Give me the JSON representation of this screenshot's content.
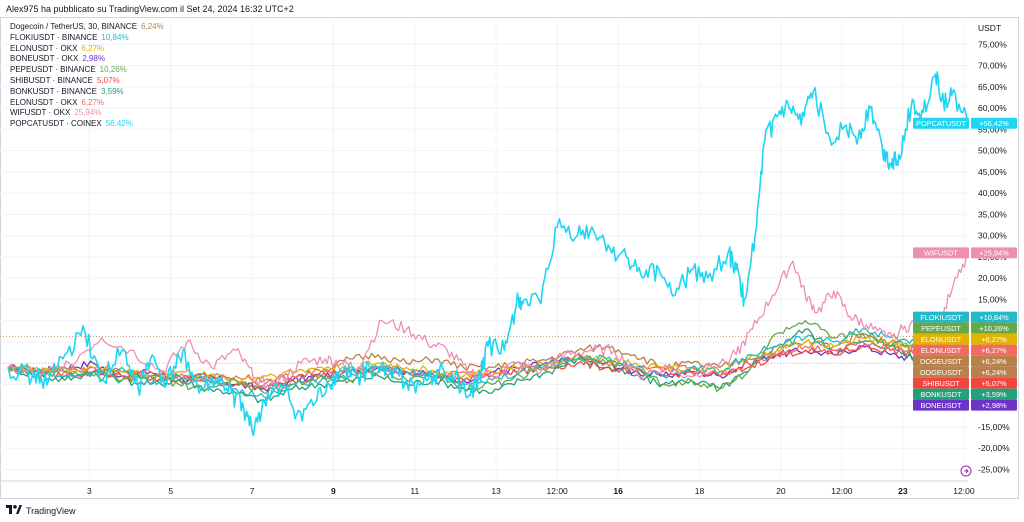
{
  "header": {
    "published_by": "Alex975 ha pubblicato su TradingView.com il Set 24, 2024 16:32 UTC+2"
  },
  "footer": {
    "brand": "TradingView"
  },
  "chart_data": {
    "type": "line",
    "title": "Dogecoin / TetherUS, 30, BINANCE",
    "currency": "USDT",
    "y_unit": "%",
    "ylim": [
      -27,
      80
    ],
    "y_ticks": [
      75,
      70,
      65,
      60,
      55,
      50,
      45,
      40,
      35,
      30,
      25,
      20,
      15,
      10,
      5,
      0,
      -5,
      -10,
      -15,
      -20,
      -25
    ],
    "y_tick_labels": [
      "75,00%",
      "70,00%",
      "65,00%",
      "60,00%",
      "55,00%",
      "50,00%",
      "45,00%",
      "40,00%",
      "35,00%",
      "30,00%",
      "25,00%",
      "20,00%",
      "15,00%",
      "10,00%",
      "5,00%",
      "0,00%",
      "-5,00%",
      "-10,00%",
      "-15,00%",
      "-20,00%",
      "-25,00%"
    ],
    "xlim": [
      0,
      23.6
    ],
    "x_ticks": [
      {
        "x": 2.0,
        "label": "3",
        "bold": false
      },
      {
        "x": 4.0,
        "label": "5",
        "bold": false
      },
      {
        "x": 6.0,
        "label": "7",
        "bold": false
      },
      {
        "x": 8.0,
        "label": "9",
        "bold": true
      },
      {
        "x": 10.0,
        "label": "11",
        "bold": false
      },
      {
        "x": 12.0,
        "label": "13",
        "bold": false
      },
      {
        "x": 13.5,
        "label": "12:00",
        "bold": false
      },
      {
        "x": 15.0,
        "label": "16",
        "bold": true
      },
      {
        "x": 17.0,
        "label": "18",
        "bold": false
      },
      {
        "x": 19.0,
        "label": "20",
        "bold": false
      },
      {
        "x": 20.5,
        "label": "12:00",
        "bold": false
      },
      {
        "x": 22.0,
        "label": "23",
        "bold": true
      },
      {
        "x": 23.5,
        "label": "12:00",
        "bold": false
      }
    ],
    "main": {
      "name": "Dogecoin / TetherUS, 30, BINANCE",
      "value": "6,24%",
      "label": "DOGEUSDT",
      "badge": "+6,24%",
      "color": "#b9804c"
    },
    "legend": [
      {
        "symbol": "FLOKIUSDT · BINANCE",
        "value": "10,84%",
        "color": "#26b8c6"
      },
      {
        "symbol": "ELONUSDT · OKX",
        "value": "6,27%",
        "color": "#e0b400"
      },
      {
        "symbol": "BONEUSDT · OKX",
        "value": "2,98%",
        "color": "#6b35c8"
      },
      {
        "symbol": "PEPEUSDT · BINANCE",
        "value": "10,26%",
        "color": "#65a847"
      },
      {
        "symbol": "SHIBUSDT · BINANCE",
        "value": "5,07%",
        "color": "#f0463f"
      },
      {
        "symbol": "BONKUSDT · BINANCE",
        "value": "3,59%",
        "color": "#22a07a"
      },
      {
        "symbol": "ELONUSDT · OKX",
        "value": "6,27%",
        "color": "#f26b62"
      },
      {
        "symbol": "WIFUSDT · OKX",
        "value": "25,94%",
        "color": "#ef8fb0"
      },
      {
        "symbol": "POPCATUSDT · COINEX",
        "value": "56,42%",
        "color": "#1fd6f2"
      }
    ],
    "series": [
      {
        "name": "POPCATUSDT",
        "badge": "+56,42%",
        "color": "#1fd6f2",
        "last": 56.42,
        "x": [
          0,
          0.6,
          1.0,
          1.4,
          1.9,
          2.3,
          2.8,
          3.2,
          3.5,
          3.9,
          4.3,
          4.7,
          5.1,
          5.5,
          5.8,
          6.0,
          6.3,
          6.7,
          7.1,
          7.5,
          7.9,
          8.2,
          8.6,
          9.0,
          9.4,
          9.8,
          10.2,
          10.6,
          11.0,
          11.3,
          11.6,
          11.8,
          12.2,
          12.5,
          12.7,
          13.1,
          13.5,
          14.0,
          14.4,
          14.8,
          15.2,
          15.6,
          16.0,
          16.4,
          16.8,
          17.2,
          17.7,
          17.9,
          18.1,
          18.4,
          18.6,
          18.9,
          19.2,
          19.5,
          19.8,
          20.2,
          20.6,
          20.9,
          21.2,
          21.5,
          21.7,
          21.9,
          22.2,
          22.5,
          22.8,
          23.0,
          23.2,
          23.6
        ],
        "y": [
          -1,
          -3,
          -4,
          2,
          7,
          -4,
          3,
          -6,
          1,
          -5,
          3,
          -7,
          -4,
          -7,
          -11,
          -16,
          -9,
          -5,
          -12,
          -10,
          -5,
          -2,
          -3,
          -1,
          -2,
          -4,
          -5,
          -2,
          -3,
          -8,
          -3,
          4,
          3,
          14,
          15,
          14,
          32,
          30,
          31,
          27,
          25,
          20,
          22,
          16,
          22,
          20,
          26,
          22,
          15,
          32,
          52,
          58,
          60,
          56,
          64,
          53,
          56,
          53,
          60,
          50,
          47,
          49,
          60,
          59,
          68,
          61,
          63,
          56.42
        ]
      },
      {
        "name": "WIFUSDT",
        "badge": "+25,94%",
        "color": "#ef8fb0",
        "last": 25.94,
        "x": [
          0,
          0.8,
          1.5,
          2.3,
          3.0,
          3.8,
          4.4,
          5.0,
          5.6,
          6.1,
          6.6,
          7.2,
          7.8,
          8.2,
          8.6,
          9.2,
          9.8,
          10.3,
          10.8,
          11.3,
          11.9,
          12.5,
          13.1,
          13.7,
          14.3,
          14.9,
          15.5,
          16.1,
          16.7,
          17.3,
          17.9,
          18.3,
          18.8,
          19.3,
          19.6,
          19.9,
          20.3,
          20.7,
          21.1,
          21.6,
          22.0,
          22.4,
          22.8,
          23.2,
          23.6
        ],
        "y": [
          -1,
          -3,
          0,
          6,
          3,
          -2,
          5,
          -1,
          3,
          -4,
          -5,
          0,
          1,
          0,
          -1,
          10,
          8,
          5,
          3,
          -2,
          -3,
          0,
          -2,
          2,
          3,
          3,
          -3,
          -1,
          -3,
          -1,
          2,
          8,
          16,
          24,
          16,
          12,
          17,
          11,
          9,
          6,
          8,
          10,
          7,
          17,
          25.94
        ]
      },
      {
        "name": "FLOKIUSDT",
        "badge": "+10,84%",
        "color": "#26b8c6",
        "last": 10.84,
        "x": [
          0,
          0.7,
          1.4,
          2.1,
          2.8,
          3.5,
          4.2,
          4.9,
          5.6,
          6.3,
          7.0,
          7.7,
          8.4,
          9.1,
          9.8,
          10.5,
          11.2,
          11.9,
          12.6,
          13.3,
          14.0,
          14.7,
          15.4,
          16.1,
          16.8,
          17.5,
          18.2,
          18.9,
          19.6,
          20.3,
          21.0,
          21.7,
          22.3,
          22.9,
          23.6
        ],
        "y": [
          -1,
          -2,
          -3,
          -2,
          -1,
          -5,
          -3,
          -4,
          -6,
          -8,
          -5,
          -4,
          -3,
          -1,
          -2,
          -3,
          -5,
          -4,
          -2,
          0,
          1,
          1,
          -1,
          -3,
          -1,
          -2,
          2,
          4,
          6,
          5,
          8,
          6,
          5,
          9,
          10.84
        ]
      },
      {
        "name": "PEPEUSDT",
        "badge": "+10,26%",
        "color": "#65a847",
        "last": 10.26,
        "x": [
          0,
          0.7,
          1.4,
          2.1,
          2.8,
          3.5,
          4.2,
          4.9,
          5.6,
          6.3,
          7.0,
          7.7,
          8.4,
          9.1,
          9.8,
          10.5,
          11.2,
          11.9,
          12.6,
          13.3,
          14.0,
          14.7,
          15.4,
          16.1,
          16.8,
          17.5,
          18.2,
          18.9,
          19.6,
          20.3,
          21.0,
          21.7,
          22.3,
          22.9,
          23.6
        ],
        "y": [
          -1,
          -3,
          -2,
          -3,
          -4,
          -3,
          -5,
          -6,
          -4,
          -7,
          -5,
          -3,
          -4,
          -2,
          -4,
          -2,
          -6,
          -5,
          -3,
          -1,
          2,
          0,
          -1,
          -5,
          -4,
          -6,
          -2,
          7,
          10,
          6,
          7,
          4,
          5,
          8,
          10.26
        ]
      },
      {
        "name": "ELONUSDT",
        "badge": "+6,27%",
        "color": "#e0b400",
        "last": 6.27,
        "x": [
          0,
          0.7,
          1.4,
          2.1,
          2.8,
          3.5,
          4.2,
          4.9,
          5.6,
          6.3,
          7.0,
          7.7,
          8.4,
          9.1,
          9.8,
          10.5,
          11.2,
          11.9,
          12.6,
          13.3,
          14.0,
          14.7,
          15.4,
          16.1,
          16.8,
          17.5,
          18.2,
          18.9,
          19.6,
          20.3,
          21.0,
          21.7,
          22.3,
          22.9,
          23.6
        ],
        "y": [
          -1,
          -1,
          -2,
          -1,
          -2,
          -3,
          -2,
          -3,
          -4,
          -3,
          -2,
          -1,
          -1,
          0,
          -1,
          -2,
          -3,
          -2,
          -1,
          0,
          1,
          1,
          0,
          -1,
          -1,
          -2,
          1,
          3,
          5,
          4,
          6,
          5,
          4,
          5,
          6.27
        ]
      },
      {
        "name": "ELONUSDT",
        "badge": "+6,27%",
        "color": "#f26b62",
        "last": 6.27,
        "x": [
          0,
          0.7,
          1.4,
          2.1,
          2.8,
          3.5,
          4.2,
          4.9,
          5.6,
          6.3,
          7.0,
          7.7,
          8.4,
          9.1,
          9.8,
          10.5,
          11.2,
          11.9,
          12.6,
          13.3,
          14.0,
          14.7,
          15.4,
          16.1,
          16.8,
          17.5,
          18.2,
          18.9,
          19.6,
          20.3,
          21.0,
          21.7,
          22.3,
          22.9,
          23.6
        ],
        "y": [
          -1,
          -2,
          -2,
          -1,
          -3,
          -2,
          -3,
          -4,
          -3,
          -4,
          -3,
          -2,
          -2,
          -1,
          -2,
          -3,
          -2,
          -3,
          -1,
          0,
          2,
          0,
          -1,
          -2,
          -1,
          -3,
          0,
          2,
          4,
          3,
          5,
          4,
          3,
          5,
          6.27
        ]
      },
      {
        "name": "DOGEUSDT",
        "badge": "+6,24%",
        "color": "#b9804c",
        "last": 6.24,
        "x": [
          0,
          0.7,
          1.4,
          2.1,
          2.8,
          3.5,
          4.2,
          4.9,
          5.6,
          6.3,
          7.0,
          7.7,
          8.4,
          9.1,
          9.8,
          10.5,
          11.2,
          11.9,
          12.6,
          13.3,
          14.0,
          14.7,
          15.4,
          16.1,
          16.8,
          17.5,
          18.2,
          18.9,
          19.6,
          20.3,
          21.0,
          21.7,
          22.3,
          22.9,
          23.6
        ],
        "y": [
          -1,
          -2,
          -1,
          -2,
          -2,
          -3,
          -4,
          -3,
          -4,
          -5,
          -3,
          -2,
          1,
          2,
          0,
          1,
          -1,
          -1,
          0,
          1,
          3,
          4,
          2,
          -1,
          0,
          -1,
          1,
          3,
          5,
          4,
          7,
          5,
          3,
          4,
          6.24
        ]
      },
      {
        "name": "SHIBUSDT",
        "badge": "+5,07%",
        "color": "#f0463f",
        "last": 5.07,
        "x": [
          0,
          0.7,
          1.4,
          2.1,
          2.8,
          3.5,
          4.2,
          4.9,
          5.6,
          6.3,
          7.0,
          7.7,
          8.4,
          9.1,
          9.8,
          10.5,
          11.2,
          11.9,
          12.6,
          13.3,
          14.0,
          14.7,
          15.4,
          16.1,
          16.8,
          17.5,
          18.2,
          18.9,
          19.6,
          20.3,
          21.0,
          21.7,
          22.3,
          22.9,
          23.6
        ],
        "y": [
          -1,
          -2,
          -3,
          -2,
          -3,
          -4,
          -3,
          -4,
          -5,
          -6,
          -4,
          -3,
          -2,
          -1,
          -2,
          -3,
          -4,
          -3,
          -2,
          -1,
          0,
          -1,
          -2,
          -3,
          -2,
          -3,
          -1,
          2,
          3,
          2,
          4,
          3,
          2,
          3,
          5.07
        ]
      },
      {
        "name": "BONKUSDT",
        "badge": "+3,59%",
        "color": "#22a07a",
        "last": 3.59,
        "x": [
          0,
          0.7,
          1.4,
          2.1,
          2.8,
          3.5,
          4.2,
          4.9,
          5.6,
          6.3,
          7.0,
          7.7,
          8.4,
          9.1,
          9.8,
          10.5,
          11.2,
          11.9,
          12.6,
          13.3,
          14.0,
          14.7,
          15.4,
          16.1,
          16.8,
          17.5,
          18.2,
          18.9,
          19.6,
          20.3,
          21.0,
          21.7,
          22.3,
          22.9,
          23.6
        ],
        "y": [
          -1,
          -3,
          -4,
          -2,
          -4,
          -5,
          -4,
          -6,
          -7,
          -9,
          -6,
          -5,
          -4,
          -3,
          -5,
          -4,
          -6,
          -7,
          -4,
          -2,
          1,
          -1,
          -3,
          -5,
          -4,
          -6,
          -2,
          4,
          8,
          3,
          5,
          4,
          1,
          -2,
          3.59
        ]
      },
      {
        "name": "BONEUSDT",
        "badge": "+2,98%",
        "color": "#6b35c8",
        "last": 2.98,
        "x": [
          0,
          0.7,
          1.4,
          2.1,
          2.8,
          3.5,
          4.2,
          4.9,
          5.6,
          6.3,
          7.0,
          7.7,
          8.4,
          9.1,
          9.8,
          10.5,
          11.2,
          11.9,
          12.6,
          13.3,
          14.0,
          14.7,
          15.4,
          16.1,
          16.8,
          17.5,
          18.2,
          18.9,
          19.6,
          20.3,
          21.0,
          21.7,
          22.3,
          22.9,
          23.6
        ],
        "y": [
          -1,
          -2,
          -1,
          0,
          -3,
          -2,
          -4,
          -3,
          -5,
          -6,
          -4,
          -3,
          -2,
          -1,
          -2,
          -3,
          -4,
          -2,
          -1,
          0,
          1,
          0,
          -2,
          -3,
          -2,
          -3,
          0,
          2,
          3,
          2,
          4,
          2,
          1,
          2,
          2.98
        ]
      }
    ]
  }
}
